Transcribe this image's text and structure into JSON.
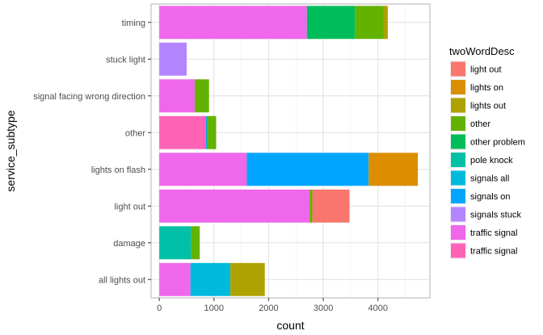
{
  "chart_data": {
    "type": "bar",
    "orientation": "horizontal",
    "stacked": true,
    "xlabel": "count",
    "ylabel": "service_subtype",
    "xlim": [
      -150,
      4950
    ],
    "xticks": [
      0,
      1000,
      2000,
      3000,
      4000
    ],
    "grid": true,
    "legend_title": "twoWordDesc",
    "legend_position": "right",
    "categories": [
      "timing",
      "stuck light",
      "signal facing wrong direction",
      "other",
      "lights on flash",
      "light out",
      "damage",
      "all lights out"
    ],
    "series": [
      {
        "name": "light out",
        "color": "#F8766D",
        "values": [
          0,
          0,
          0,
          0,
          0,
          680,
          0,
          0
        ]
      },
      {
        "name": "lights on",
        "color": "#DB8E00",
        "values": [
          0,
          0,
          0,
          0,
          900,
          0,
          0,
          0
        ]
      },
      {
        "name": "lights out",
        "color": "#AEA200",
        "values": [
          80,
          0,
          0,
          0,
          0,
          0,
          0,
          630
        ]
      },
      {
        "name": "other",
        "color": "#64B200",
        "values": [
          520,
          0,
          260,
          170,
          0,
          50,
          160,
          0
        ]
      },
      {
        "name": "other problem",
        "color": "#00BD5C",
        "values": [
          880,
          0,
          0,
          0,
          0,
          0,
          0,
          0
        ]
      },
      {
        "name": "pole knock",
        "color": "#00C1A7",
        "values": [
          0,
          0,
          0,
          0,
          0,
          0,
          580,
          0
        ]
      },
      {
        "name": "signals all",
        "color": "#00BADE",
        "values": [
          0,
          0,
          0,
          0,
          0,
          0,
          0,
          730
        ]
      },
      {
        "name": "signals on",
        "color": "#00A6FF",
        "values": [
          0,
          0,
          0,
          20,
          2230,
          0,
          0,
          0
        ]
      },
      {
        "name": "signals stuck",
        "color": "#B385FF",
        "values": [
          0,
          500,
          0,
          0,
          0,
          0,
          0,
          0
        ]
      },
      {
        "name": "traffic signal",
        "color": "#EF67EB",
        "values": [
          2700,
          0,
          650,
          0,
          1600,
          2750,
          0,
          570
        ]
      },
      {
        "name": "traffic signal",
        "color": "#FF63B6",
        "values": [
          0,
          0,
          0,
          850,
          0,
          0,
          0,
          0
        ]
      }
    ]
  },
  "colors": {
    "panel_border": "#b3b3b3",
    "grid_major": "#e0e0e0",
    "grid_minor": "#f0f0f0"
  }
}
